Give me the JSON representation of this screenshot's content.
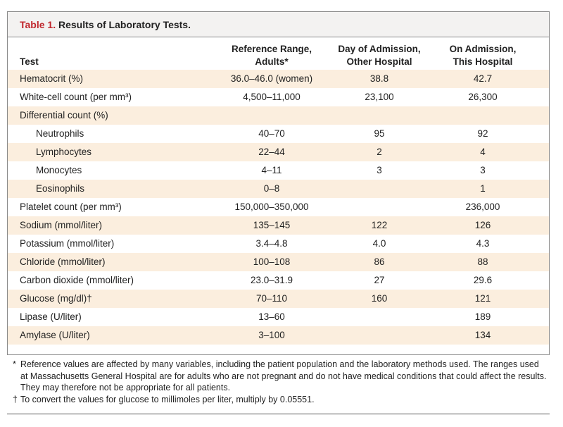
{
  "caption": {
    "number": "Table 1.",
    "title": "Results of Laboratory Tests."
  },
  "headers": {
    "test": "Test",
    "ref_line1": "Reference Range,",
    "ref_line2": "Adults*",
    "other_line1": "Day of Admission,",
    "other_line2": "Other Hospital",
    "this_line1": "On Admission,",
    "this_line2": "This Hospital"
  },
  "rows": [
    {
      "test": "Hematocrit (%)",
      "ref": "36.0–46.0 (women)",
      "other": "38.8",
      "this": "42.7",
      "indent": false
    },
    {
      "test": "White-cell count (per mm³)",
      "ref": "4,500–11,000",
      "other": "23,100",
      "this": "26,300",
      "indent": false
    },
    {
      "test": "Differential count (%)",
      "ref": "",
      "other": "",
      "this": "",
      "indent": false
    },
    {
      "test": "Neutrophils",
      "ref": "40–70",
      "other": "95",
      "this": "92",
      "indent": true
    },
    {
      "test": "Lymphocytes",
      "ref": "22–44",
      "other": "2",
      "this": "4",
      "indent": true
    },
    {
      "test": "Monocytes",
      "ref": "4–11",
      "other": "3",
      "this": "3",
      "indent": true
    },
    {
      "test": "Eosinophils",
      "ref": "0–8",
      "other": "",
      "this": "1",
      "indent": true
    },
    {
      "test": "Platelet count (per mm³)",
      "ref": "150,000–350,000",
      "other": "",
      "this": "236,000",
      "indent": false
    },
    {
      "test": "Sodium (mmol/liter)",
      "ref": "135–145",
      "other": "122",
      "this": "126",
      "indent": false
    },
    {
      "test": "Potassium (mmol/liter)",
      "ref": "3.4–4.8",
      "other": "4.0",
      "this": "4.3",
      "indent": false
    },
    {
      "test": "Chloride (mmol/liter)",
      "ref": "100–108",
      "other": "86",
      "this": "88",
      "indent": false
    },
    {
      "test": "Carbon dioxide (mmol/liter)",
      "ref": "23.0–31.9",
      "other": "27",
      "this": "29.6",
      "indent": false
    },
    {
      "test": "Glucose (mg/dl)†",
      "ref": "70–110",
      "other": "160",
      "this": "121",
      "indent": false
    },
    {
      "test": "Lipase (U/liter)",
      "ref": "13–60",
      "other": "",
      "this": "189",
      "indent": false
    },
    {
      "test": "Amylase (U/liter)",
      "ref": "3–100",
      "other": "",
      "this": "134",
      "indent": false
    }
  ],
  "footnotes": [
    {
      "mark": "*",
      "text": "Reference values are affected by many variables, including the patient population and the laboratory methods used. The ranges used at Massachusetts General Hospital are for adults who are not pregnant and do not have medical conditions that could affect the results. They may therefore not be appropriate for all patients."
    },
    {
      "mark": "†",
      "text": "To convert the values for glucose to millimoles per liter, multiply by 0.05551."
    }
  ]
}
